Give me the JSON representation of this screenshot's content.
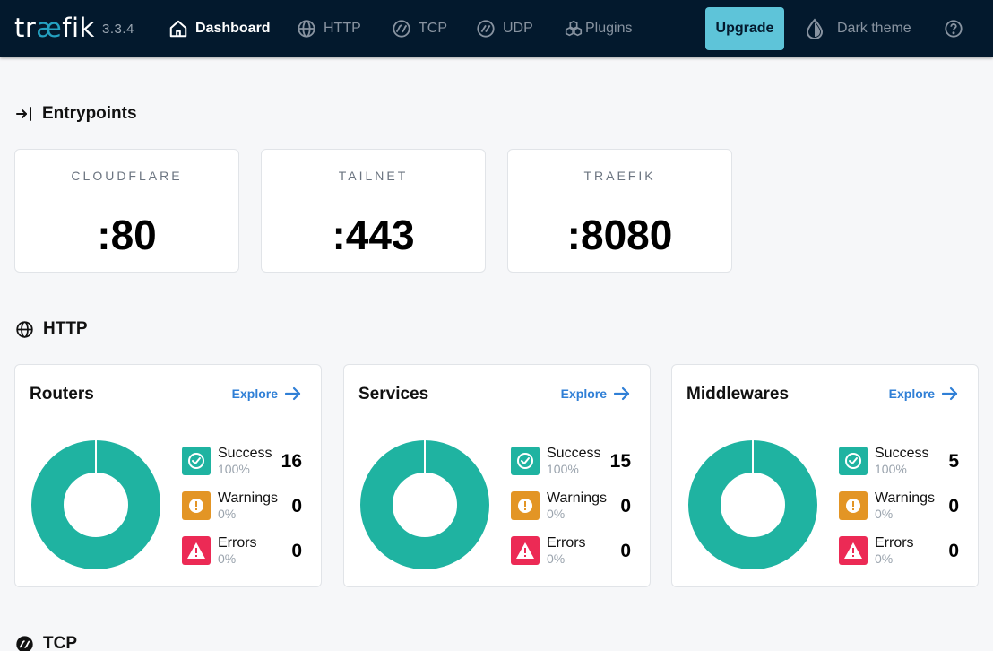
{
  "header": {
    "logo_text_1": "tr",
    "logo_text_2": "æ",
    "logo_text_3": "fik",
    "version": "3.3.4",
    "nav": [
      {
        "label": "Dashboard",
        "icon": "home-icon",
        "active": true
      },
      {
        "label": "HTTP",
        "icon": "globe-icon"
      },
      {
        "label": "TCP",
        "icon": "tcp-icon"
      },
      {
        "label": "UDP",
        "icon": "udp-icon"
      },
      {
        "label": "Plugins",
        "icon": "plugins-icon"
      }
    ],
    "upgrade_label": "Upgrade",
    "theme_label": "Dark theme",
    "help_icon": "help-circle-icon"
  },
  "entrypoints": {
    "title": "Entrypoints",
    "icon": "enter-arrow-icon",
    "items": [
      {
        "name": "CLOUDFLARE",
        "port": ":80"
      },
      {
        "name": "TAILNET",
        "port": ":443"
      },
      {
        "name": "TRAEFIK",
        "port": ":8080"
      }
    ]
  },
  "http": {
    "title": "HTTP",
    "icon": "globe-icon",
    "explore_label": "Explore",
    "cards": [
      {
        "title": "Routers",
        "stats": [
          {
            "label": "Success",
            "percent": "100%",
            "count": "16"
          },
          {
            "label": "Warnings",
            "percent": "0%",
            "count": "0"
          },
          {
            "label": "Errors",
            "percent": "0%",
            "count": "0"
          }
        ]
      },
      {
        "title": "Services",
        "stats": [
          {
            "label": "Success",
            "percent": "100%",
            "count": "15"
          },
          {
            "label": "Warnings",
            "percent": "0%",
            "count": "0"
          },
          {
            "label": "Errors",
            "percent": "0%",
            "count": "0"
          }
        ]
      },
      {
        "title": "Middlewares",
        "stats": [
          {
            "label": "Success",
            "percent": "100%",
            "count": "5"
          },
          {
            "label": "Warnings",
            "percent": "0%",
            "count": "0"
          },
          {
            "label": "Errors",
            "percent": "0%",
            "count": "0"
          }
        ]
      }
    ]
  },
  "tcp": {
    "title": "TCP",
    "icon": "tcp-icon"
  },
  "colors": {
    "nav_bg": "#03192d",
    "accent": "#5ec4d9",
    "success": "#1fb3a1",
    "warning": "#e39525",
    "error": "#ec2a55",
    "link": "#2f7fd6"
  }
}
